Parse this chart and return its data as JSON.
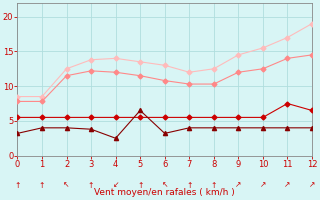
{
  "x": [
    0,
    1,
    2,
    3,
    4,
    5,
    6,
    7,
    8,
    9,
    10,
    11,
    12
  ],
  "upper_pink": [
    8.5,
    8.5,
    12.5,
    13.8,
    14.0,
    13.5,
    13.0,
    12.0,
    12.5,
    14.5,
    15.5,
    17.0,
    19.0
  ],
  "lower_pink": [
    7.8,
    7.8,
    11.5,
    12.2,
    12.0,
    11.5,
    10.8,
    10.3,
    10.3,
    12.0,
    12.5,
    14.0,
    14.5
  ],
  "red_flat": [
    5.5,
    5.5,
    5.5,
    5.5,
    5.5,
    5.5,
    5.5,
    5.5,
    5.5,
    5.5,
    5.5,
    7.5,
    6.5
  ],
  "red_variable": [
    3.2,
    4.0,
    4.0,
    3.8,
    2.5,
    6.5,
    3.2,
    4.0,
    4.0,
    4.0,
    4.0,
    4.0,
    4.0
  ],
  "upper_pink_color": "#ffbbbb",
  "lower_pink_color": "#ff8888",
  "red_flat_color": "#cc0000",
  "red_variable_color": "#880000",
  "bg_color": "#d8f5f5",
  "grid_color": "#b0dede",
  "xlabel": "Vent moyen/en rafales ( km/h )",
  "xlabel_color": "#cc0000",
  "tick_color": "#cc0000",
  "axis_color": "#888888",
  "ylim": [
    0,
    22
  ],
  "xlim": [
    0,
    12
  ],
  "yticks": [
    0,
    5,
    10,
    15,
    20
  ],
  "xticks": [
    0,
    1,
    2,
    3,
    4,
    5,
    6,
    7,
    8,
    9,
    10,
    11,
    12
  ],
  "wind_arrows": [
    "↑",
    "↑",
    "↖",
    "↑",
    "↙",
    "↑",
    "↖",
    "↑",
    "↑",
    "↗",
    "↗",
    "↗",
    "↗"
  ]
}
